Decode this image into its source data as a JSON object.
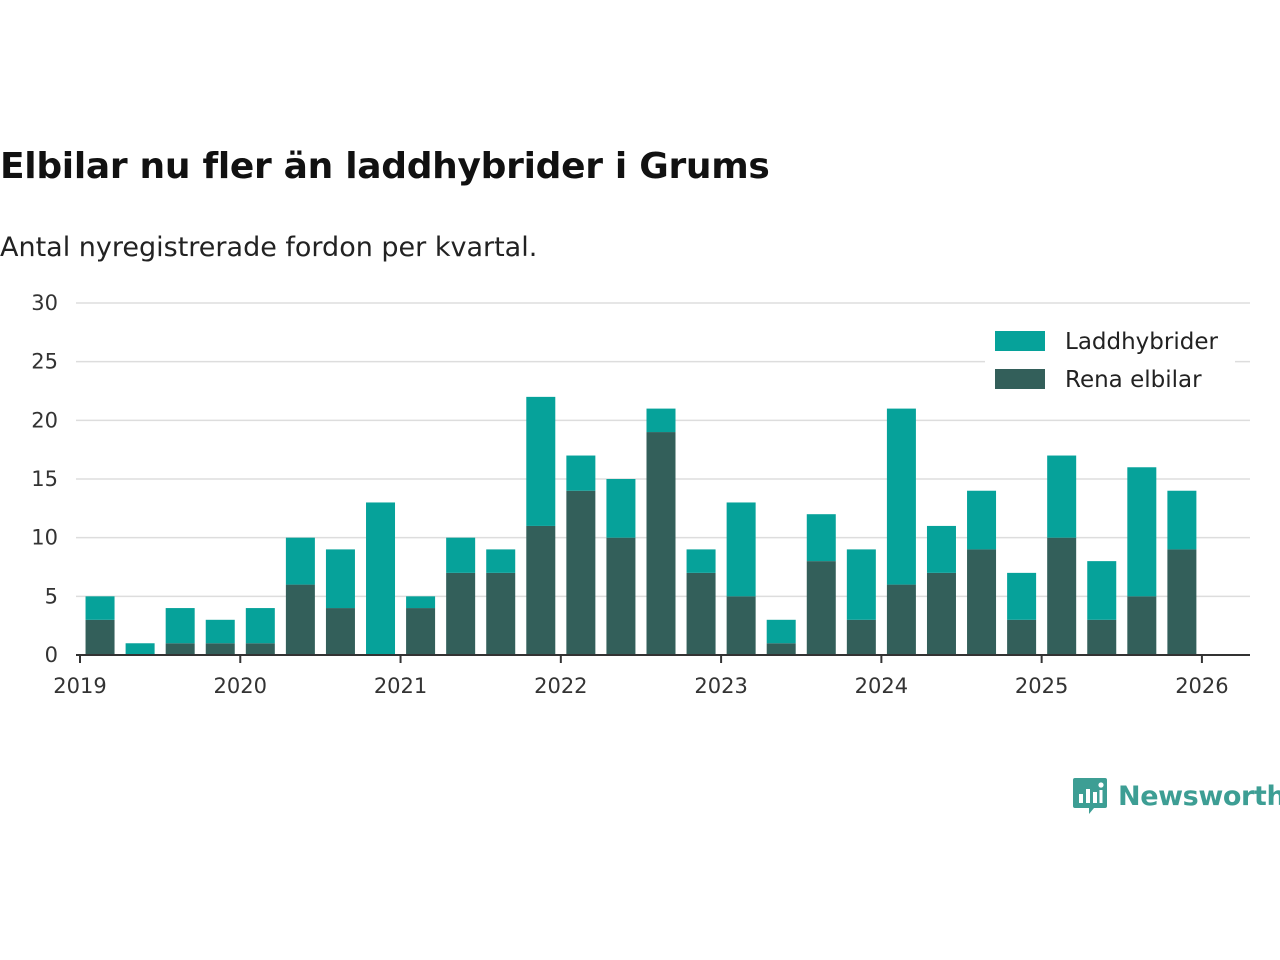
{
  "header": {
    "title": "Elbilar nu fler än laddhybrider i Grums",
    "subtitle": "Antal nyregistrerade fordon per kvartal."
  },
  "brand": {
    "name": "Newsworthy",
    "icon": "newsworthy-logo-icon",
    "color": "#3d9e94"
  },
  "chart_data": {
    "type": "bar",
    "stacked": true,
    "title": "Elbilar nu fler än laddhybrider i Grums",
    "subtitle": "Antal nyregistrerade fordon per kvartal.",
    "xlabel": "",
    "ylabel": "",
    "ylim": [
      0,
      30
    ],
    "yticks": [
      0,
      5,
      10,
      15,
      20,
      25,
      30
    ],
    "x_range_quarter_index": [
      -0.6,
      28.7
    ],
    "xticks": [
      {
        "label": "2019",
        "pos": -0.5
      },
      {
        "label": "2020",
        "pos": 3.5
      },
      {
        "label": "2021",
        "pos": 7.5
      },
      {
        "label": "2022",
        "pos": 11.5
      },
      {
        "label": "2023",
        "pos": 15.5
      },
      {
        "label": "2024",
        "pos": 19.5
      },
      {
        "label": "2025",
        "pos": 23.5
      },
      {
        "label": "2026",
        "pos": 27.5
      }
    ],
    "categories": [
      "2019 Q1",
      "2019 Q2",
      "2019 Q3",
      "2019 Q4",
      "2020 Q1",
      "2020 Q2",
      "2020 Q3",
      "2020 Q4",
      "2021 Q1",
      "2021 Q2",
      "2021 Q3",
      "2021 Q4",
      "2022 Q1",
      "2022 Q2",
      "2022 Q3",
      "2022 Q4",
      "2023 Q1",
      "2023 Q2",
      "2023 Q3",
      "2023 Q4",
      "2024 Q1",
      "2024 Q2",
      "2024 Q3",
      "2024 Q4",
      "2025 Q1",
      "2025 Q2",
      "2025 Q3",
      "2025 Q4"
    ],
    "series": [
      {
        "name": "Rena elbilar",
        "color": "#335f5a",
        "values": [
          3,
          0,
          1,
          1,
          1,
          6,
          4,
          0,
          4,
          7,
          7,
          11,
          14,
          10,
          19,
          7,
          5,
          1,
          8,
          3,
          6,
          7,
          9,
          3,
          10,
          3,
          5,
          9
        ]
      },
      {
        "name": "Laddhybrider",
        "color": "#06a29a",
        "values": [
          2,
          1,
          3,
          2,
          3,
          4,
          5,
          13,
          1,
          3,
          2,
          11,
          3,
          5,
          2,
          2,
          8,
          2,
          4,
          6,
          15,
          4,
          5,
          4,
          7,
          5,
          11,
          5
        ]
      }
    ],
    "legend": {
      "position": "top-right",
      "entries": [
        {
          "label": "Laddhybrider",
          "color": "#06a29a"
        },
        {
          "label": "Rena elbilar",
          "color": "#335f5a"
        }
      ]
    },
    "grid": true
  }
}
